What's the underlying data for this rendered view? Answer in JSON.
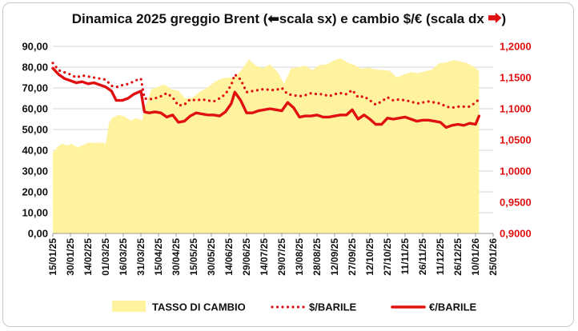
{
  "chart_data": {
    "type": "area",
    "title": "Dinamica 2025 greggio Brent (⮅scala sx) e cambio $/€ (scala dx ⮆)",
    "title_parts": {
      "main": "Dinamica 2025 greggio Brent (",
      "left_marker": "⬅",
      "mid": "scala sx) e cambio $/€ (scala dx ",
      "right_marker": "⮕",
      "end": ")"
    },
    "ylim_left": [
      0,
      90
    ],
    "ylim_right": [
      0.9,
      1.2
    ],
    "yticks_left": [
      "0,00",
      "10,00",
      "20,00",
      "30,00",
      "40,00",
      "50,00",
      "60,00",
      "70,00",
      "80,00",
      "90,00"
    ],
    "yticks_right": [
      "0,9000",
      "0,9500",
      "1,0000",
      "1,0500",
      "1,1000",
      "1,1500",
      "1,2000"
    ],
    "x_ticks": [
      "15/01/25",
      "30/01/25",
      "14/02/25",
      "01/03/25",
      "16/03/25",
      "31/03/25",
      "15/04/25",
      "30/04/25",
      "15/05/25",
      "30/05/25",
      "14/06/25",
      "29/06/25",
      "14/07/25",
      "29/07/25",
      "13/08/25",
      "28/08/25",
      "12/09/25",
      "27/09/25",
      "12/10/25",
      "27/10/25",
      "11/11/25",
      "26/11/25",
      "11/12/25",
      "26/12/25",
      "10/01/26",
      "25/01/26"
    ],
    "grid": true,
    "legend_position": "bottom",
    "colors": {
      "area": "#fff3a0",
      "usd": "#e01010",
      "eur": "#e01010",
      "right_axis": "#e01010"
    },
    "series": [
      {
        "name": "TASSO DI CAMBIO",
        "axis": "right",
        "style": "area",
        "x": [
          "2025-01-15",
          "2025-01-19",
          "2025-01-23",
          "2025-01-27",
          "2025-01-31",
          "2025-02-05",
          "2025-02-10",
          "2025-02-15",
          "2025-02-20",
          "2025-02-25",
          "2025-03-01",
          "2025-03-04",
          "2025-03-07",
          "2025-03-12",
          "2025-03-17",
          "2025-03-22",
          "2025-03-27",
          "2025-04-01",
          "2025-04-04",
          "2025-04-09",
          "2025-04-14",
          "2025-04-20",
          "2025-04-26",
          "2025-05-02",
          "2025-05-08",
          "2025-05-14",
          "2025-05-20",
          "2025-05-26",
          "2025-06-01",
          "2025-06-07",
          "2025-06-13",
          "2025-06-19",
          "2025-06-25",
          "2025-07-01",
          "2025-07-07",
          "2025-07-13",
          "2025-07-19",
          "2025-07-25",
          "2025-07-31",
          "2025-08-06",
          "2025-08-12",
          "2025-08-18",
          "2025-08-24",
          "2025-08-30",
          "2025-09-05",
          "2025-09-11",
          "2025-09-17",
          "2025-09-23",
          "2025-09-29",
          "2025-10-05",
          "2025-10-11",
          "2025-10-17",
          "2025-10-23",
          "2025-10-29",
          "2025-11-04",
          "2025-11-10",
          "2025-11-16",
          "2025-11-22",
          "2025-11-28",
          "2025-12-04",
          "2025-12-10",
          "2025-12-16",
          "2025-12-22",
          "2025-12-28",
          "2026-01-03",
          "2026-01-09",
          "2026-01-13"
        ],
        "values": [
          1.03,
          1.039,
          1.044,
          1.041,
          1.044,
          1.038,
          1.042,
          1.046,
          1.045,
          1.046,
          1.044,
          1.078,
          1.086,
          1.09,
          1.088,
          1.081,
          1.085,
          1.081,
          1.105,
          1.131,
          1.135,
          1.139,
          1.131,
          1.129,
          1.116,
          1.118,
          1.127,
          1.133,
          1.142,
          1.148,
          1.15,
          1.15,
          1.163,
          1.179,
          1.169,
          1.165,
          1.171,
          1.16,
          1.14,
          1.165,
          1.167,
          1.169,
          1.162,
          1.17,
          1.171,
          1.177,
          1.181,
          1.174,
          1.17,
          1.164,
          1.166,
          1.163,
          1.162,
          1.161,
          1.15,
          1.155,
          1.159,
          1.157,
          1.16,
          1.163,
          1.173,
          1.174,
          1.178,
          1.176,
          1.173,
          1.167,
          1.16
        ]
      },
      {
        "name": "$/BARILE",
        "axis": "left",
        "style": "dotted",
        "x": [
          "2025-01-15",
          "2025-01-20",
          "2025-01-25",
          "2025-01-30",
          "2025-02-04",
          "2025-02-09",
          "2025-02-14",
          "2025-02-19",
          "2025-02-24",
          "2025-03-01",
          "2025-03-06",
          "2025-03-11",
          "2025-03-16",
          "2025-03-21",
          "2025-03-26",
          "2025-03-31",
          "2025-04-03",
          "2025-04-07",
          "2025-04-12",
          "2025-04-17",
          "2025-04-22",
          "2025-04-27",
          "2025-05-02",
          "2025-05-07",
          "2025-05-12",
          "2025-05-17",
          "2025-05-22",
          "2025-05-27",
          "2025-06-01",
          "2025-06-06",
          "2025-06-11",
          "2025-06-16",
          "2025-06-19",
          "2025-06-24",
          "2025-06-29",
          "2025-07-04",
          "2025-07-09",
          "2025-07-14",
          "2025-07-19",
          "2025-07-24",
          "2025-07-29",
          "2025-08-03",
          "2025-08-08",
          "2025-08-13",
          "2025-08-18",
          "2025-08-23",
          "2025-08-28",
          "2025-09-02",
          "2025-09-07",
          "2025-09-12",
          "2025-09-17",
          "2025-09-22",
          "2025-09-27",
          "2025-10-02",
          "2025-10-07",
          "2025-10-12",
          "2025-10-17",
          "2025-10-22",
          "2025-10-27",
          "2025-11-01",
          "2025-11-06",
          "2025-11-11",
          "2025-11-16",
          "2025-11-21",
          "2025-11-26",
          "2025-12-01",
          "2025-12-06",
          "2025-12-11",
          "2025-12-16",
          "2025-12-21",
          "2025-12-26",
          "2025-12-31",
          "2026-01-05",
          "2026-01-10",
          "2026-01-13"
        ],
        "values": [
          82.0,
          78.5,
          77.5,
          76.5,
          75.0,
          76.0,
          75.5,
          75.0,
          74.5,
          74.0,
          71.0,
          70.5,
          71.5,
          72.0,
          73.5,
          74.5,
          65.0,
          64.5,
          65.0,
          66.0,
          67.5,
          65.5,
          61.5,
          62.0,
          64.5,
          64.0,
          64.5,
          64.0,
          63.5,
          65.0,
          67.0,
          71.5,
          76.5,
          74.0,
          68.0,
          68.5,
          69.0,
          69.5,
          69.0,
          69.0,
          70.0,
          67.0,
          66.5,
          66.0,
          66.5,
          67.5,
          67.0,
          67.0,
          66.0,
          67.0,
          67.5,
          67.0,
          69.0,
          65.5,
          66.0,
          64.0,
          62.0,
          63.5,
          65.5,
          64.0,
          64.5,
          64.0,
          63.5,
          62.5,
          63.0,
          63.5,
          63.0,
          62.5,
          61.0,
          60.5,
          61.0,
          61.0,
          61.0,
          63.0,
          64.5
        ]
      },
      {
        "name": "€/BARILE",
        "axis": "left",
        "style": "solid",
        "x": [
          "2025-01-15",
          "2025-01-20",
          "2025-01-25",
          "2025-01-30",
          "2025-02-04",
          "2025-02-09",
          "2025-02-14",
          "2025-02-19",
          "2025-02-24",
          "2025-03-01",
          "2025-03-06",
          "2025-03-10",
          "2025-03-15",
          "2025-03-20",
          "2025-03-25",
          "2025-03-31",
          "2025-04-03",
          "2025-04-07",
          "2025-04-12",
          "2025-04-17",
          "2025-04-22",
          "2025-04-27",
          "2025-05-02",
          "2025-05-07",
          "2025-05-12",
          "2025-05-17",
          "2025-05-22",
          "2025-05-27",
          "2025-06-01",
          "2025-06-06",
          "2025-06-11",
          "2025-06-16",
          "2025-06-19",
          "2025-06-24",
          "2025-06-29",
          "2025-07-04",
          "2025-07-09",
          "2025-07-14",
          "2025-07-19",
          "2025-07-24",
          "2025-07-29",
          "2025-08-03",
          "2025-08-08",
          "2025-08-13",
          "2025-08-18",
          "2025-08-23",
          "2025-08-28",
          "2025-09-02",
          "2025-09-07",
          "2025-09-12",
          "2025-09-17",
          "2025-09-22",
          "2025-09-27",
          "2025-10-02",
          "2025-10-07",
          "2025-10-12",
          "2025-10-17",
          "2025-10-22",
          "2025-10-27",
          "2025-11-01",
          "2025-11-06",
          "2025-11-11",
          "2025-11-16",
          "2025-11-21",
          "2025-11-26",
          "2025-12-01",
          "2025-12-06",
          "2025-12-11",
          "2025-12-16",
          "2025-12-21",
          "2025-12-26",
          "2025-12-31",
          "2026-01-05",
          "2026-01-10",
          "2026-01-13"
        ],
        "values": [
          79.5,
          76.5,
          74.5,
          73.5,
          72.5,
          73.0,
          72.0,
          72.5,
          71.5,
          70.5,
          68.5,
          64.0,
          64.0,
          65.0,
          67.0,
          68.5,
          58.5,
          58.0,
          58.5,
          58.0,
          56.0,
          57.0,
          53.5,
          54.0,
          56.5,
          58.0,
          57.5,
          57.0,
          57.0,
          56.5,
          58.5,
          62.5,
          68.0,
          64.0,
          58.0,
          58.0,
          59.0,
          59.5,
          60.0,
          59.5,
          59.0,
          63.0,
          60.5,
          56.0,
          56.5,
          56.5,
          57.0,
          56.0,
          56.0,
          56.5,
          57.0,
          57.0,
          59.5,
          55.0,
          57.0,
          55.0,
          52.5,
          52.5,
          55.5,
          55.0,
          55.5,
          56.0,
          55.0,
          54.0,
          54.5,
          54.5,
          54.0,
          53.5,
          51.0,
          52.0,
          52.5,
          52.0,
          53.0,
          52.5,
          56.5
        ]
      }
    ]
  }
}
